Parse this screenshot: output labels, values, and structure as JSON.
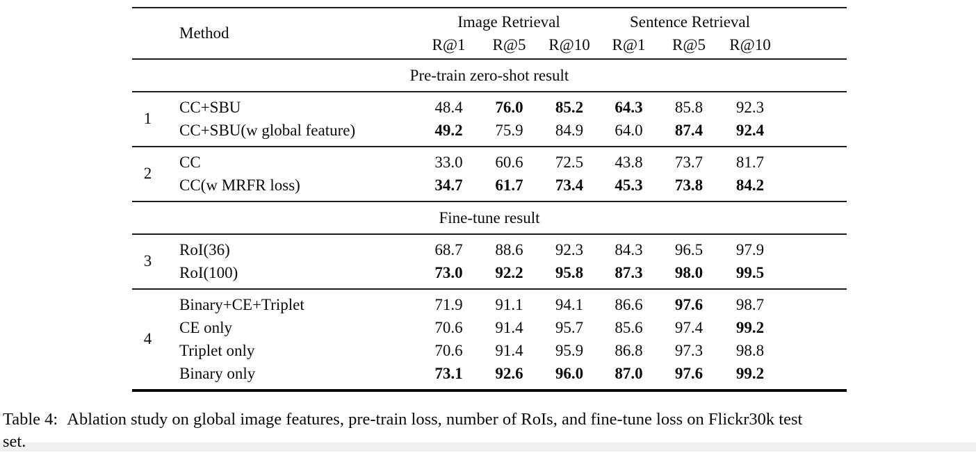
{
  "table": {
    "header": {
      "method": "Method",
      "groups": [
        {
          "label": "Image Retrieval",
          "subcols": [
            "R@1",
            "R@5",
            "R@10"
          ]
        },
        {
          "label": "Sentence Retrieval",
          "subcols": [
            "R@1",
            "R@5",
            "R@10"
          ]
        }
      ]
    },
    "sections": [
      {
        "title": "Pre-train zero-shot result",
        "groups": [
          {
            "index": "1",
            "rows": [
              {
                "method": "CC+SBU",
                "values": [
                  "48.4",
                  "76.0",
                  "85.2",
                  "64.3",
                  "85.8",
                  "92.3"
                ],
                "bold": [
                  false,
                  true,
                  true,
                  true,
                  false,
                  false
                ]
              },
              {
                "method": "CC+SBU(w global feature)",
                "values": [
                  "49.2",
                  "75.9",
                  "84.9",
                  "64.0",
                  "87.4",
                  "92.4"
                ],
                "bold": [
                  true,
                  false,
                  false,
                  false,
                  true,
                  true
                ]
              }
            ]
          },
          {
            "index": "2",
            "rows": [
              {
                "method": "CC",
                "values": [
                  "33.0",
                  "60.6",
                  "72.5",
                  "43.8",
                  "73.7",
                  "81.7"
                ],
                "bold": [
                  false,
                  false,
                  false,
                  false,
                  false,
                  false
                ]
              },
              {
                "method": "CC(w MRFR loss)",
                "values": [
                  "34.7",
                  "61.7",
                  "73.4",
                  "45.3",
                  "73.8",
                  "84.2"
                ],
                "bold": [
                  true,
                  true,
                  true,
                  true,
                  true,
                  true
                ]
              }
            ]
          }
        ]
      },
      {
        "title": "Fine-tune result",
        "groups": [
          {
            "index": "3",
            "rows": [
              {
                "method": "RoI(36)",
                "values": [
                  "68.7",
                  "88.6",
                  "92.3",
                  "84.3",
                  "96.5",
                  "97.9"
                ],
                "bold": [
                  false,
                  false,
                  false,
                  false,
                  false,
                  false
                ]
              },
              {
                "method": "RoI(100)",
                "values": [
                  "73.0",
                  "92.2",
                  "95.8",
                  "87.3",
                  "98.0",
                  "99.5"
                ],
                "bold": [
                  true,
                  true,
                  true,
                  true,
                  true,
                  true
                ]
              }
            ]
          },
          {
            "index": "4",
            "rows": [
              {
                "method": "Binary+CE+Triplet",
                "values": [
                  "71.9",
                  "91.1",
                  "94.1",
                  "86.6",
                  "97.6",
                  "98.7"
                ],
                "bold": [
                  false,
                  false,
                  false,
                  false,
                  true,
                  false
                ]
              },
              {
                "method": "CE only",
                "values": [
                  "70.6",
                  "91.4",
                  "95.7",
                  "85.6",
                  "97.4",
                  "99.2"
                ],
                "bold": [
                  false,
                  false,
                  false,
                  false,
                  false,
                  true
                ]
              },
              {
                "method": "Triplet only",
                "values": [
                  "70.6",
                  "91.4",
                  "95.9",
                  "86.8",
                  "97.3",
                  "98.8"
                ],
                "bold": [
                  false,
                  false,
                  false,
                  false,
                  false,
                  false
                ]
              },
              {
                "method": "Binary only",
                "values": [
                  "73.1",
                  "92.6",
                  "96.0",
                  "87.0",
                  "97.6",
                  "99.2"
                ],
                "bold": [
                  true,
                  true,
                  true,
                  true,
                  true,
                  true
                ]
              }
            ]
          }
        ]
      }
    ]
  },
  "caption": {
    "label": "Table 4:",
    "line1": "Ablation study on global image features, pre-train loss, number of RoIs, and fine-tune loss on Flickr30k test",
    "line2": "set."
  }
}
